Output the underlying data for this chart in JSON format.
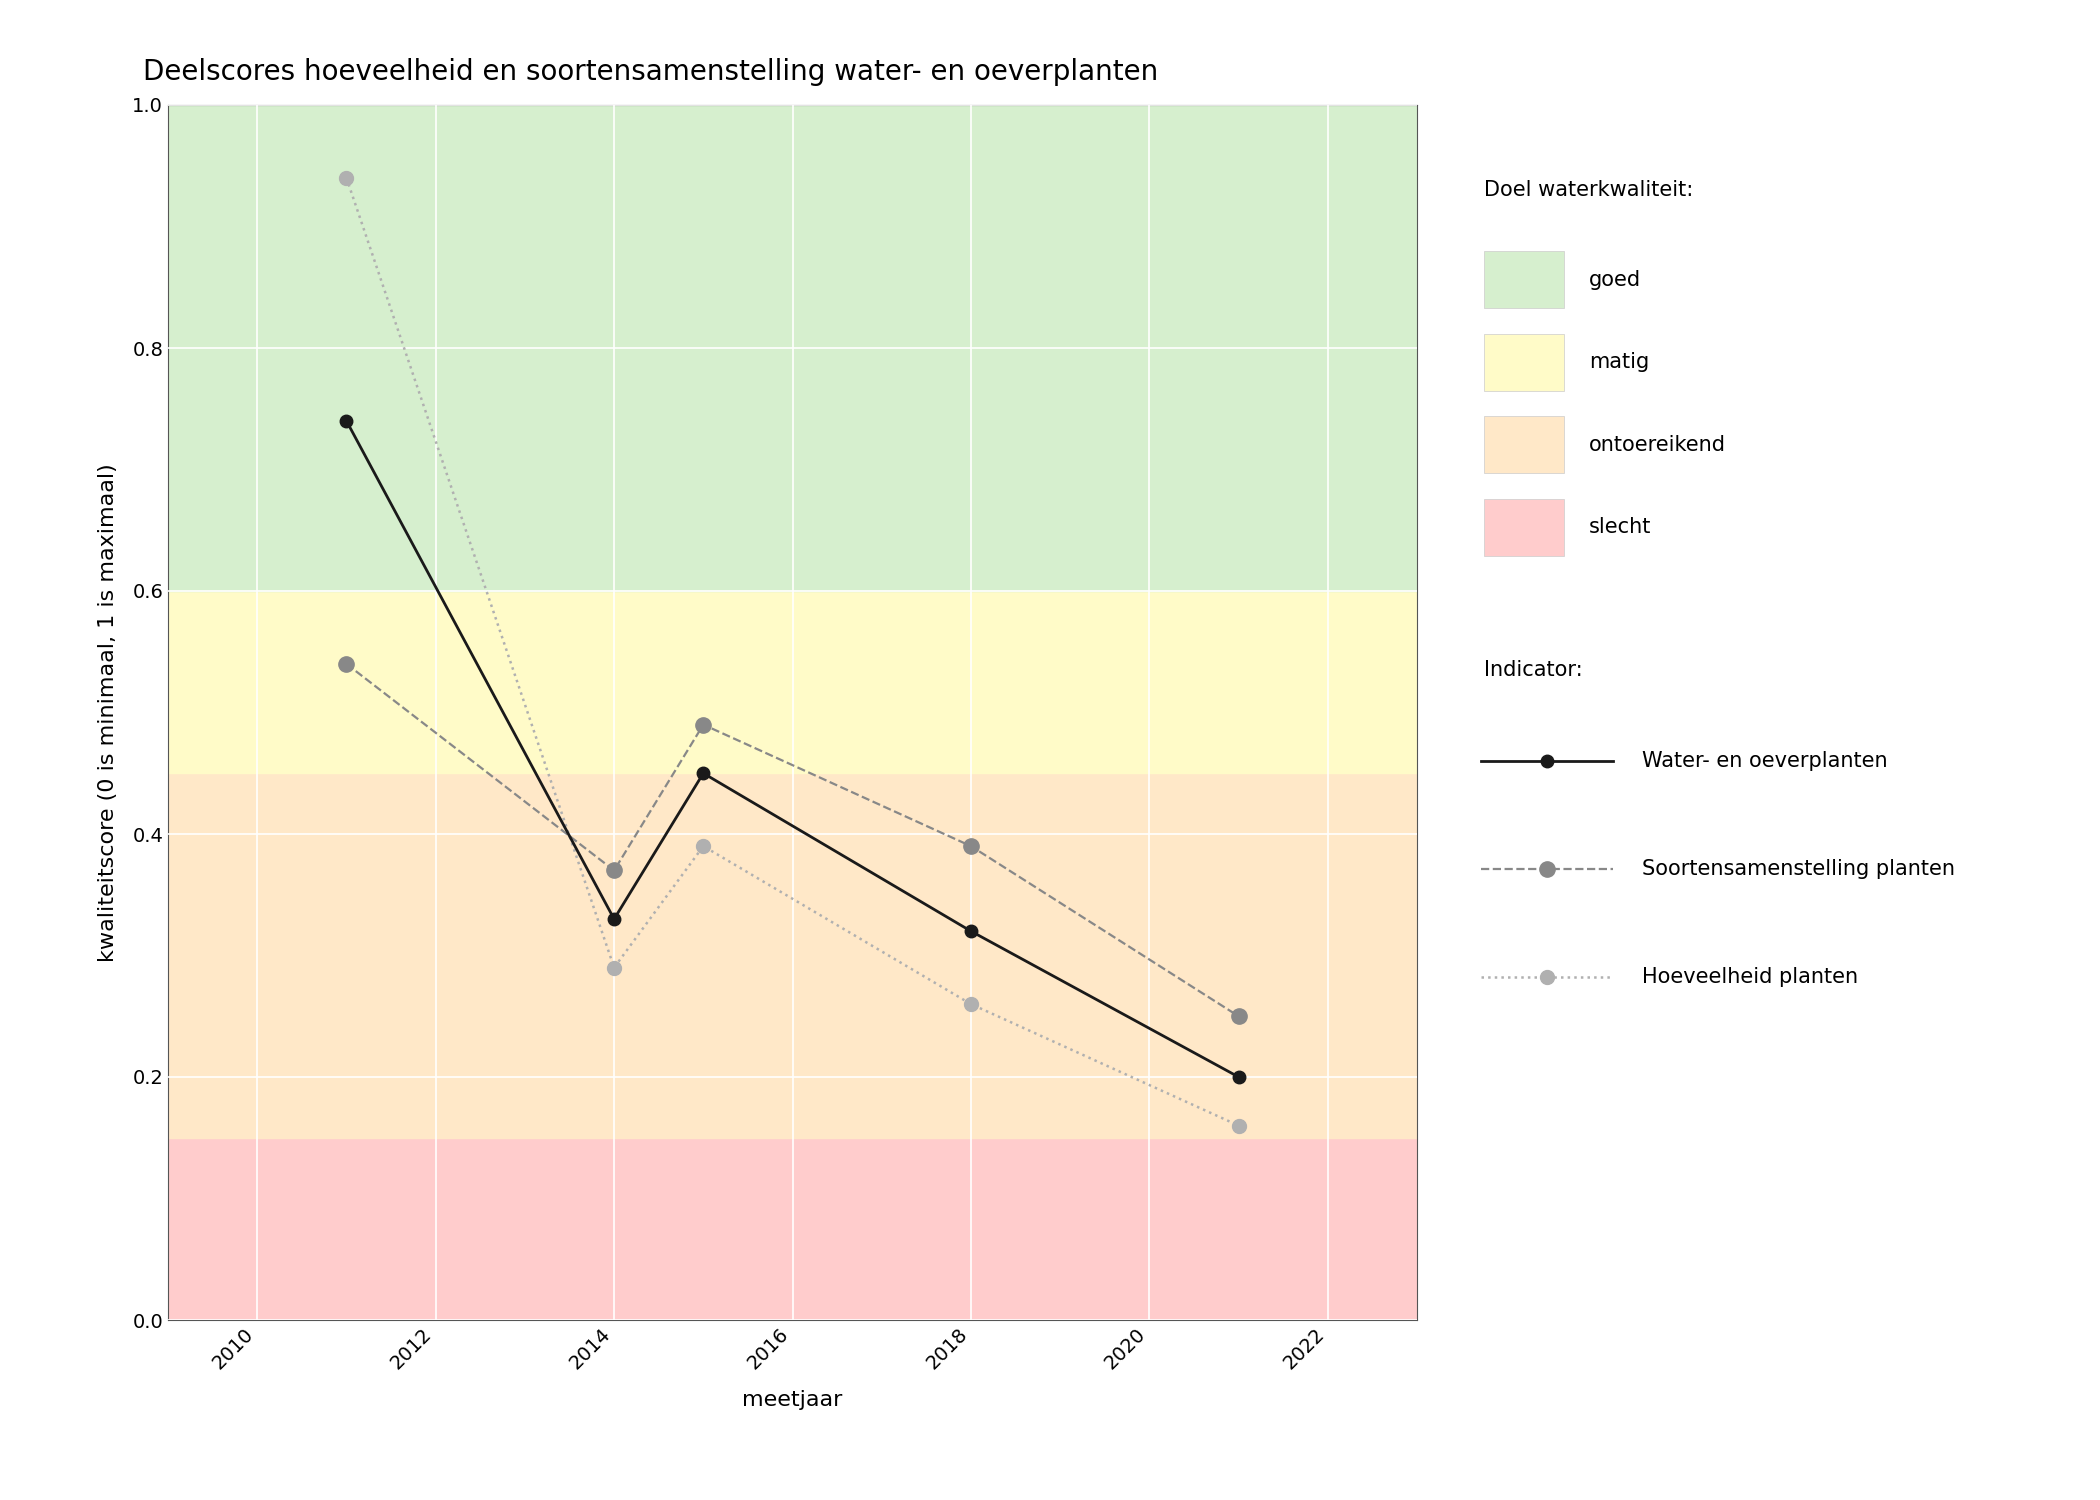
{
  "title": "Deelscores hoeveelheid en soortensamenstelling water- en oeverplanten",
  "xlabel": "meetjaar",
  "ylabel": "kwaliteitscore (0 is minimaal, 1 is maximaal)",
  "xlim": [
    2009.0,
    2023.0
  ],
  "ylim": [
    0.0,
    1.0
  ],
  "xticks": [
    2010,
    2012,
    2014,
    2016,
    2018,
    2020,
    2022
  ],
  "yticks": [
    0.0,
    0.2,
    0.4,
    0.6,
    0.8,
    1.0
  ],
  "bg_bands": [
    {
      "ymin": 0.0,
      "ymax": 0.15,
      "color": "#FFCCCC",
      "label": "slecht"
    },
    {
      "ymin": 0.15,
      "ymax": 0.45,
      "color": "#FFE8C8",
      "label": "ontoereikend"
    },
    {
      "ymin": 0.45,
      "ymax": 0.6,
      "color": "#FFFBC8",
      "label": "matig"
    },
    {
      "ymin": 0.6,
      "ymax": 1.0,
      "color": "#D6EFCE",
      "label": "goed"
    }
  ],
  "series": [
    {
      "name": "Water- en oeverplanten",
      "years": [
        2011,
        2014,
        2015,
        2018,
        2021
      ],
      "values": [
        0.74,
        0.33,
        0.45,
        0.32,
        0.2
      ],
      "color": "#1a1a1a",
      "linestyle": "solid",
      "linewidth": 2.0,
      "markersize": 9,
      "marker": "o",
      "zorder": 5
    },
    {
      "name": "Soortensamenstelling planten",
      "years": [
        2011,
        2014,
        2015,
        2018,
        2021
      ],
      "values": [
        0.54,
        0.37,
        0.49,
        0.39,
        0.25
      ],
      "color": "#888888",
      "linestyle": "dashed",
      "linewidth": 1.6,
      "markersize": 11,
      "marker": "o",
      "zorder": 4
    },
    {
      "name": "Hoeveelheid planten",
      "years": [
        2011,
        2014,
        2015,
        2018,
        2021
      ],
      "values": [
        0.94,
        0.29,
        0.39,
        0.26,
        0.16
      ],
      "color": "#b0b0b0",
      "linestyle": "dotted",
      "linewidth": 1.8,
      "markersize": 10,
      "marker": "o",
      "zorder": 3
    }
  ],
  "legend_title_bg": "Doel waterkwaliteit:",
  "legend_title_indicator": "Indicator:",
  "bg_legend_order": [
    "goed",
    "matig",
    "ontoereikend",
    "slecht"
  ],
  "bg_legend_colors": [
    "#D6EFCE",
    "#FFFBC8",
    "#FFE8C8",
    "#FFCCCC"
  ],
  "background_color": "#ffffff",
  "title_fontsize": 20,
  "axis_label_fontsize": 16,
  "tick_fontsize": 14,
  "legend_fontsize": 15
}
